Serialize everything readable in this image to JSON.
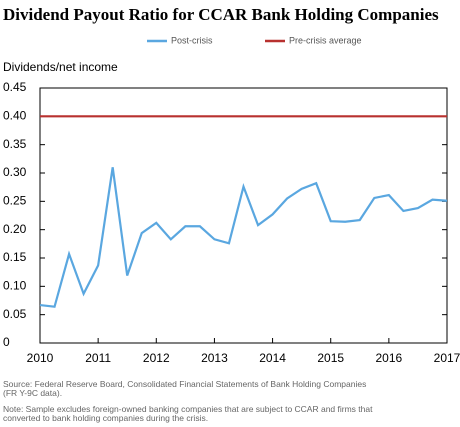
{
  "chart_data": {
    "type": "line",
    "title": "Dividend Payout Ratio for CCAR Bank Holding Companies",
    "y_label": "Dividends/net income",
    "x": [
      2010,
      2010.25,
      2010.5,
      2010.75,
      2011,
      2011.25,
      2011.5,
      2011.75,
      2012,
      2012.25,
      2012.5,
      2012.75,
      2013,
      2013.25,
      2013.5,
      2013.75,
      2014,
      2014.25,
      2014.5,
      2014.75,
      2015,
      2015.25,
      2015.5,
      2015.75,
      2016,
      2016.25,
      2016.5,
      2016.75,
      2017
    ],
    "series": [
      {
        "name": "Post-crisis",
        "color": "#5aa7e0",
        "values": [
          0.067,
          0.064,
          0.157,
          0.087,
          0.137,
          0.31,
          0.119,
          0.194,
          0.212,
          0.183,
          0.206,
          0.206,
          0.183,
          0.176,
          0.276,
          0.208,
          0.227,
          0.255,
          0.272,
          0.282,
          0.215,
          0.214,
          0.217,
          0.256,
          0.261,
          0.233,
          0.238,
          0.253,
          0.251
        ]
      },
      {
        "name": "Pre-crisis average",
        "color": "#b8312f",
        "x": [
          2010,
          2017
        ],
        "values": [
          0.4,
          0.4
        ]
      }
    ],
    "xlim": [
      2010,
      2017
    ],
    "xticks": [
      2010,
      2011,
      2012,
      2013,
      2014,
      2015,
      2016,
      2017
    ],
    "ylim": [
      0,
      0.45
    ],
    "yticks": [
      0,
      0.05,
      {
        "value": 0.1,
        "label": "0.10"
      },
      0.15,
      {
        "value": 0.2,
        "label": "0.20"
      },
      0.25,
      {
        "value": 0.3,
        "label": "0.30"
      },
      0.35,
      {
        "value": 0.4,
        "label": "0.40"
      },
      0.45
    ],
    "grid": false,
    "notes": [
      "Source: Federal Reserve Board, Consolidated Financial Statements of Bank Holding Companies",
      "(FR Y-9C data).",
      "Note: Sample excludes foreign-owned banking companies that are subject to CCAR and firms that",
      "converted to bank holding companies during the crisis."
    ]
  }
}
